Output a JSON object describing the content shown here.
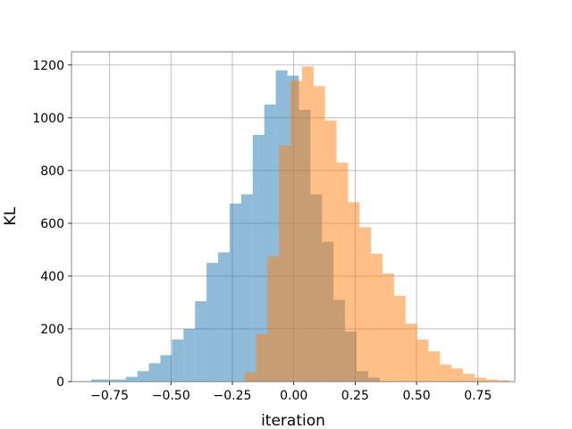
{
  "chart_data": {
    "type": "bar",
    "title": "",
    "xlabel": "iteration",
    "ylabel": "KL",
    "xlim": [
      -0.905,
      0.9
    ],
    "ylim": [
      0,
      1250
    ],
    "xticks": [
      -0.75,
      -0.5,
      -0.25,
      0.0,
      0.25,
      0.5,
      0.75
    ],
    "xtick_labels": [
      "−0.75",
      "−0.50",
      "−0.25",
      "0.00",
      "0.25",
      "0.50",
      "0.75"
    ],
    "yticks": [
      0,
      200,
      400,
      600,
      800,
      1000,
      1200
    ],
    "ytick_labels": [
      "0",
      "200",
      "400",
      "600",
      "800",
      "1000",
      "1200"
    ],
    "grid": true,
    "legend": "none",
    "histogram": true,
    "series": [
      {
        "color": "#1f77b4",
        "opacity": 0.5,
        "bin_width": 0.047,
        "bin_start": -0.825,
        "values": [
          8,
          8,
          8,
          18,
          40,
          70,
          100,
          160,
          200,
          305,
          450,
          490,
          675,
          710,
          935,
          1050,
          1180,
          1160,
          1030,
          710,
          530,
          310,
          190,
          40,
          15
        ]
      },
      {
        "color": "#ff7f0e",
        "opacity": 0.5,
        "bin_width": 0.0468,
        "bin_start": -0.2,
        "values": [
          35,
          180,
          475,
          895,
          1140,
          1195,
          1120,
          990,
          830,
          680,
          585,
          485,
          410,
          325,
          220,
          160,
          115,
          65,
          50,
          30,
          15,
          8,
          5
        ]
      }
    ]
  }
}
